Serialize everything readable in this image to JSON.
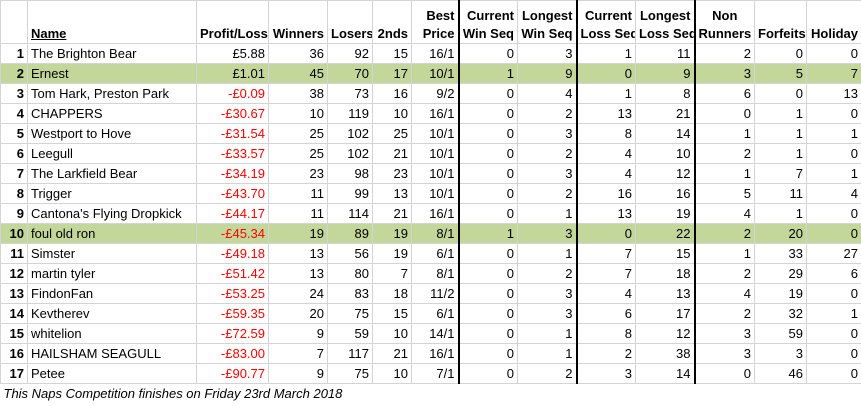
{
  "table": {
    "headers": [
      [
        "Name"
      ],
      [
        "Profit/Loss"
      ],
      [
        "Winners"
      ],
      [
        "Losers"
      ],
      [
        "2nds"
      ],
      [
        "Best",
        "Price"
      ],
      [
        "Current",
        "Win Seq"
      ],
      [
        "Longest",
        "Win Seq"
      ],
      [
        "Current",
        "Loss Seq"
      ],
      [
        "Longest",
        "Loss Seq"
      ],
      [
        "Non",
        "Runners"
      ],
      [
        "Forfeits"
      ],
      [
        "Holiday"
      ]
    ],
    "highlighted_rows": [
      1,
      9
    ],
    "rows": [
      [
        1,
        "The Brighton Bear",
        "£5.88",
        36,
        92,
        15,
        "16/1",
        0,
        3,
        1,
        11,
        2,
        0,
        0
      ],
      [
        2,
        "Ernest",
        "£1.01",
        45,
        70,
        17,
        "10/1",
        1,
        9,
        0,
        9,
        3,
        5,
        7
      ],
      [
        3,
        "Tom Hark, Preston Park",
        "-£0.09",
        38,
        73,
        16,
        "9/2",
        0,
        4,
        1,
        8,
        6,
        0,
        13
      ],
      [
        4,
        "CHAPPERS",
        "-£30.67",
        10,
        119,
        10,
        "16/1",
        0,
        2,
        13,
        21,
        0,
        1,
        0
      ],
      [
        5,
        "Westport to Hove",
        "-£31.54",
        25,
        102,
        25,
        "10/1",
        0,
        3,
        8,
        14,
        1,
        1,
        1
      ],
      [
        6,
        "Leegull",
        "-£33.57",
        25,
        102,
        21,
        "10/1",
        0,
        2,
        4,
        10,
        2,
        1,
        0
      ],
      [
        7,
        "The Larkfield Bear",
        "-£34.19",
        23,
        98,
        23,
        "10/1",
        0,
        3,
        4,
        12,
        1,
        7,
        1
      ],
      [
        8,
        "Trigger",
        "-£43.70",
        11,
        99,
        13,
        "10/1",
        0,
        2,
        16,
        16,
        5,
        11,
        4
      ],
      [
        9,
        "Cantona's Flying Dropkick",
        "-£44.17",
        11,
        114,
        21,
        "16/1",
        0,
        1,
        13,
        19,
        4,
        1,
        0
      ],
      [
        10,
        "foul old ron",
        "-£45.34",
        19,
        89,
        19,
        "8/1",
        1,
        3,
        0,
        22,
        2,
        20,
        0
      ],
      [
        11,
        "Simster",
        "-£49.18",
        13,
        56,
        19,
        "6/1",
        0,
        1,
        7,
        15,
        1,
        33,
        27
      ],
      [
        12,
        "martin tyler",
        "-£51.42",
        13,
        80,
        7,
        "8/1",
        0,
        2,
        7,
        18,
        2,
        29,
        6
      ],
      [
        13,
        "FindonFan",
        "-£53.25",
        24,
        83,
        18,
        "11/2",
        0,
        3,
        4,
        13,
        4,
        19,
        0
      ],
      [
        14,
        "Kevtherev",
        "-£59.35",
        20,
        75,
        15,
        "6/1",
        0,
        3,
        6,
        17,
        2,
        32,
        1
      ],
      [
        15,
        "whitelion",
        "-£72.59",
        9,
        59,
        10,
        "14/1",
        0,
        1,
        8,
        12,
        3,
        59,
        0
      ],
      [
        16,
        "HAILSHAM SEAGULL",
        "-£83.00",
        7,
        117,
        21,
        "16/1",
        0,
        1,
        2,
        38,
        3,
        3,
        0
      ],
      [
        17,
        "Petee",
        "-£90.77",
        9,
        75,
        10,
        "7/1",
        0,
        2,
        3,
        14,
        0,
        46,
        0
      ]
    ],
    "footer": "This Naps Competition finishes on Friday 23rd March 2018"
  }
}
